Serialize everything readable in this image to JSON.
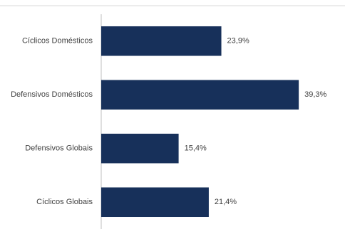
{
  "chart_data": {
    "type": "bar",
    "orientation": "horizontal",
    "categories": [
      "Cíclicos Domésticos",
      "Defensivos Domésticos",
      "Defensivos Globais",
      "Cíclicos Globais"
    ],
    "values": [
      23.9,
      39.3,
      15.4,
      21.4
    ],
    "value_labels": [
      "23,9%",
      "39,3%",
      "15,4%",
      "21,4%"
    ],
    "title": "",
    "xlabel": "",
    "ylabel": "",
    "xlim": [
      0,
      48.5
    ],
    "unit": "%",
    "grid": false,
    "legend": "none",
    "bar_color": "#17305a",
    "text_color": "#404040",
    "axis_color": "#bfbfbf"
  }
}
